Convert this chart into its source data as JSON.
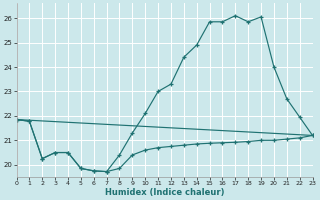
{
  "xlabel": "Humidex (Indice chaleur)",
  "bg_color": "#cce8eb",
  "grid_color": "#ffffff",
  "line_color": "#1f7272",
  "xlim": [
    0,
    23
  ],
  "ylim": [
    19.5,
    26.6
  ],
  "yticks": [
    20,
    21,
    22,
    23,
    24,
    25,
    26
  ],
  "xticks": [
    0,
    1,
    2,
    3,
    4,
    5,
    6,
    7,
    8,
    9,
    10,
    11,
    12,
    13,
    14,
    15,
    16,
    17,
    18,
    19,
    20,
    21,
    22,
    23
  ],
  "line1_x": [
    0,
    1,
    2,
    3,
    4,
    5,
    6,
    7,
    8,
    9,
    10,
    11,
    12,
    13,
    14,
    15,
    16,
    17,
    18,
    19,
    20,
    21,
    22,
    23
  ],
  "line1_y": [
    21.85,
    21.78,
    20.25,
    20.5,
    20.5,
    19.85,
    19.75,
    19.72,
    19.85,
    20.4,
    20.6,
    20.7,
    20.75,
    20.8,
    20.85,
    20.88,
    20.9,
    20.92,
    20.95,
    21.0,
    21.0,
    21.05,
    21.1,
    21.2
  ],
  "line2_x": [
    0,
    1,
    2,
    3,
    4,
    5,
    6,
    7,
    8,
    9,
    10,
    11,
    12,
    13,
    14,
    15,
    16,
    17,
    18,
    19,
    20,
    21,
    22,
    23
  ],
  "line2_y": [
    21.85,
    21.78,
    20.25,
    20.5,
    20.5,
    19.85,
    19.75,
    19.72,
    20.4,
    21.3,
    22.1,
    23.0,
    23.3,
    24.4,
    24.9,
    25.85,
    25.85,
    26.1,
    25.85,
    26.05,
    24.0,
    22.7,
    21.95,
    21.2
  ],
  "line3_x": [
    0,
    23
  ],
  "line3_y": [
    21.85,
    21.2
  ]
}
